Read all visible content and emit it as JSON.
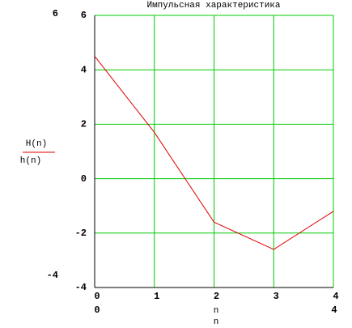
{
  "chart_data": {
    "type": "line",
    "title": "Импульсная характеристика",
    "x": [
      0,
      1,
      2,
      3,
      4
    ],
    "series": [
      {
        "name": "H(n)",
        "color": "#e00000",
        "values": [
          4.5,
          1.7,
          -1.6,
          -2.6,
          -1.2
        ]
      }
    ],
    "y_label": "h(n)",
    "x_label": "n",
    "xlim": [
      0,
      4
    ],
    "xticks": [
      0,
      1,
      2,
      3,
      4
    ],
    "ylim": [
      -4,
      6
    ],
    "yticks": [
      -4,
      -2,
      0,
      2,
      4,
      6
    ],
    "grid": true,
    "grid_color": "#00cc00"
  }
}
